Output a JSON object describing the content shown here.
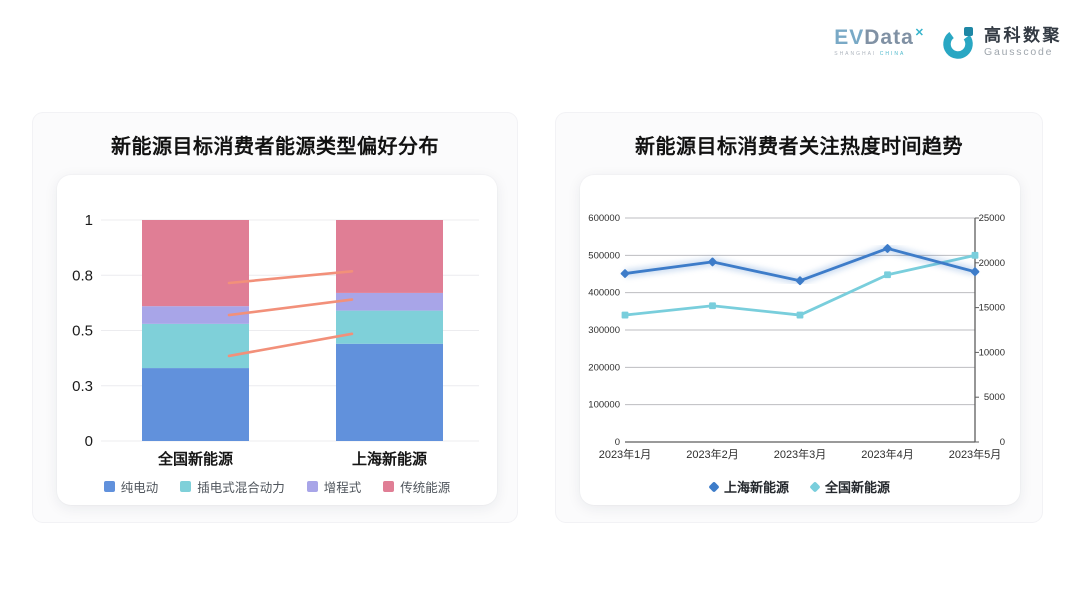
{
  "header": {
    "evdata": {
      "wordmark_prefix": "EV",
      "wordmark_suffix": "Data",
      "superscript": "✕",
      "tagline_left": "SHANGHAI ",
      "tagline_right": "CHINA"
    },
    "gausscode": {
      "name_cn": "高科数聚",
      "name_en": "Gausscode",
      "icon_color": "#29A7C3",
      "icon_accent": "#1E87A5"
    }
  },
  "chart_data": [
    {
      "type": "bar",
      "stacked": true,
      "title": "新能源目标消费者能源类型偏好分布",
      "categories": [
        "全国新能源",
        "上海新能源"
      ],
      "series": [
        {
          "name": "纯电动",
          "color": "#6191DC",
          "values": [
            0.33,
            0.44
          ]
        },
        {
          "name": "插电式混合动力",
          "color": "#7FD0D9",
          "values": [
            0.2,
            0.15
          ]
        },
        {
          "name": "增程式",
          "color": "#A8A5E8",
          "values": [
            0.08,
            0.08
          ]
        },
        {
          "name": "传统能源",
          "color": "#E07E95",
          "values": [
            0.39,
            0.33
          ]
        }
      ],
      "y_ticks": [
        "0",
        "0.3",
        "0.5",
        "0.8",
        "1"
      ],
      "ylim": [
        0,
        1
      ],
      "grid": true,
      "legend_position": "bottom",
      "trend_lines": {
        "color": "#F2907A",
        "segments": [
          {
            "from": 0.715,
            "to": 0.768
          },
          {
            "from": 0.57,
            "to": 0.64
          },
          {
            "from": 0.385,
            "to": 0.485
          }
        ]
      }
    },
    {
      "type": "line",
      "title": "新能源目标消费者关注热度时间趋势",
      "x": [
        "2023年1月",
        "2023年2月",
        "2023年3月",
        "2023年4月",
        "2023年5月"
      ],
      "series": [
        {
          "name": "上海新能源",
          "color": "#3D7CC9",
          "axis": "right",
          "marker": "diamond",
          "values": [
            18800,
            20100,
            18000,
            21600,
            19000
          ]
        },
        {
          "name": "全国新能源",
          "color": "#79CEDC",
          "axis": "left",
          "marker": "square",
          "values": [
            340000,
            365000,
            340000,
            448000,
            500000
          ]
        }
      ],
      "left_axis": {
        "ticks": [
          "0",
          "100000",
          "200000",
          "300000",
          "400000",
          "500000",
          "600000"
        ],
        "max": 600000
      },
      "right_axis": {
        "ticks": [
          "0",
          "5000",
          "10000",
          "15000",
          "20000",
          "25000"
        ],
        "max": 25000
      },
      "grid": true,
      "legend_position": "bottom"
    }
  ]
}
